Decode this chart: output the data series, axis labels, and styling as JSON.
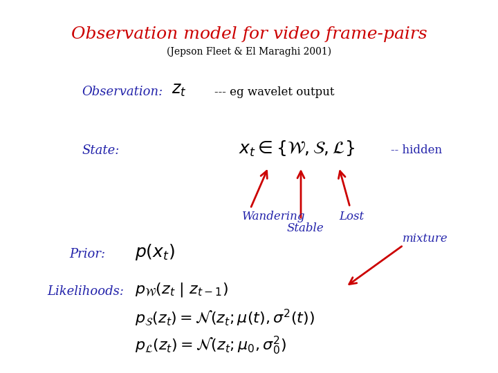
{
  "title": "Observation model for video frame-pairs",
  "subtitle": "(Jepson Fleet & El Maraghi 2001)",
  "title_color": "#cc0000",
  "blue_color": "#2222aa",
  "red_color": "#cc0000",
  "bg_color": "#ffffff",
  "observation_label": "Observation:",
  "observation_math": "$z_t$",
  "observation_note": "--- eg wavelet output",
  "state_label": "State:",
  "state_math": "$x_t \\in \\{\\mathcal{W},\\mathcal{S},\\mathcal{L}\\}$",
  "state_note": "-- hidden",
  "wandering_label": "Wandering",
  "stable_label": "Stable",
  "lost_label": "Lost",
  "prior_label": "Prior:",
  "prior_math": "$p(x_t)$",
  "mixture_label": "mixture",
  "likelihoods_label": "Likelihoods:",
  "likelihood1_math": "$p_{\\mathcal{W}}(z_t\\ |\\ z_{t-1})$",
  "likelihood2_math": "$p_{\\mathcal{S}}(z_t) = \\mathcal{N}(z_t;\\mu(t),\\sigma^2(t))$",
  "likelihood3_math": "$p_{\\mathcal{L}}(z_t) = \\mathcal{N}(z_t;\\mu_0,\\sigma_0^2)$",
  "title_fontsize": 18,
  "subtitle_fontsize": 10,
  "label_fontsize": 13,
  "math_fontsize": 15,
  "note_fontsize": 12,
  "sub_label_fontsize": 12,
  "mixture_fontsize": 12
}
